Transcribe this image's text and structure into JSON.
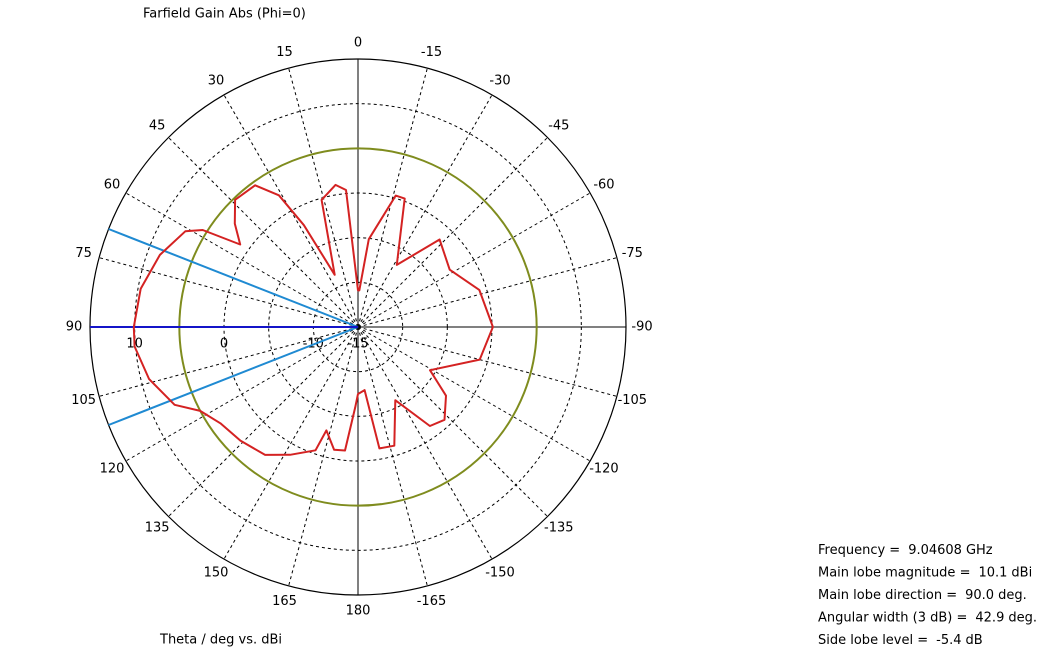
{
  "chart_data": {
    "type": "polar",
    "title": "Farfield Gain Abs (Phi=0)",
    "xlabel": "Theta / deg vs. dBi",
    "rlim": [
      -15,
      15
    ],
    "rticks": [
      -15,
      -10,
      0,
      10
    ],
    "rgrid": [
      -10,
      -5,
      0,
      5,
      10
    ],
    "thetaticks": [
      0,
      15,
      30,
      45,
      60,
      75,
      90,
      105,
      120,
      135,
      150,
      165,
      180,
      -165,
      -150,
      -135,
      -120,
      -105,
      -90,
      -75,
      -60,
      -45,
      -30,
      -15
    ],
    "reference_level": 5,
    "reference_color": "#7f8c1e",
    "main_lobe_color": "#1414c8",
    "beam_color": "#1f8ad2",
    "series": [
      {
        "name": "Farfield Gain Abs (Phi=0)",
        "color": "#d42222",
        "x": [
          -174,
          -170,
          -163,
          -153,
          -144,
          -137,
          -128,
          -121,
          -105,
          -90,
          -73,
          -58,
          -43,
          -32,
          -20,
          -16,
          -7,
          -2,
          0,
          5,
          9,
          16,
          24,
          28,
          31,
          36,
          44,
          50,
          55,
          58,
          61,
          70,
          80,
          90,
          95,
          104,
          113,
          118,
          125,
          134,
          144,
          152,
          161,
          163,
          169,
          174,
          178,
          180
        ],
        "values": [
          -7.9,
          -1.2,
          -1.1,
          -5.8,
          -1.3,
          -0.8,
          -2.5,
          -5.6,
          -0.9,
          0.1,
          -0.8,
          -2.9,
          -1.6,
          -6.8,
          0.3,
          0.3,
          -5.1,
          -10.9,
          -10.9,
          0.4,
          1.1,
          -0.2,
          -8.6,
          -2.1,
          2.2,
          4.6,
          4.8,
          3.0,
          1.1,
          5.5,
          7.1,
          8.6,
          9.7,
          10.1,
          10.1,
          9.1,
          7.3,
          5.0,
          3.8,
          3.3,
          2.7,
          1.2,
          -0.4,
          -2.9,
          -1.0,
          -1.1,
          -6.0,
          -7.5
        ]
      }
    ],
    "annotations": [
      {
        "label": "Frequency =",
        "value": 9.04608,
        "text": "9.04608",
        "unit": "GHz"
      },
      {
        "label": "Main lobe magnitude =",
        "value": 10.1,
        "text": "10.1",
        "unit": "dBi"
      },
      {
        "label": "Main lobe direction =",
        "value": 90,
        "text": "90.0",
        "unit": "deg."
      },
      {
        "label": "Angular width (3 dB) =",
        "value": 42.9,
        "text": "42.9",
        "unit": "deg."
      },
      {
        "label": "Side lobe level =",
        "value": -5.4,
        "text": "-5.4",
        "unit": "dB"
      }
    ]
  }
}
